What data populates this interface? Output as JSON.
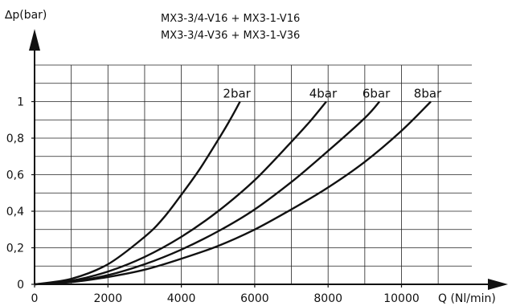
{
  "chart_data": {
    "type": "line",
    "title_lines": [
      "MX3-3/4-V16 + MX3-1-V16",
      "MX3-3/4-V36 + MX3-1-V36"
    ],
    "ylabel": "∆p(bar)",
    "xlabel": "Q (Nl/min)",
    "xlim": [
      0,
      12000
    ],
    "ylim": [
      0,
      1.1
    ],
    "grid": true,
    "x_ticks": [
      0,
      2000,
      4000,
      6000,
      8000,
      10000
    ],
    "x_tick_labels": [
      "0",
      "2000",
      "4000",
      "6000",
      "8000",
      "10000"
    ],
    "y_ticks": [
      0,
      0.2,
      0.4,
      0.6,
      0.8,
      1
    ],
    "y_tick_labels": [
      "0",
      "0,2",
      "0,4",
      "0,6",
      "0,8",
      "1"
    ],
    "series": [
      {
        "name": "2bar",
        "x": [
          0,
          1000,
          2000,
          3000,
          3500,
          4000,
          4500,
          5000,
          5300,
          5600
        ],
        "y": [
          0,
          0.03,
          0.11,
          0.26,
          0.36,
          0.49,
          0.63,
          0.79,
          0.89,
          1.0
        ]
      },
      {
        "name": "4bar",
        "x": [
          0,
          1000,
          2000,
          3000,
          4000,
          5000,
          6000,
          7000,
          7500,
          7950
        ],
        "y": [
          0,
          0.02,
          0.07,
          0.15,
          0.26,
          0.4,
          0.57,
          0.78,
          0.89,
          1.0
        ]
      },
      {
        "name": "6bar",
        "x": [
          0,
          1000,
          2000,
          3000,
          4000,
          5000,
          6000,
          7000,
          8000,
          9000,
          9400
        ],
        "y": [
          0,
          0.015,
          0.05,
          0.11,
          0.19,
          0.29,
          0.41,
          0.56,
          0.73,
          0.91,
          1.0
        ]
      },
      {
        "name": "8bar",
        "x": [
          0,
          1000,
          2000,
          3000,
          4000,
          5000,
          6000,
          7000,
          8000,
          9000,
          10000,
          10800
        ],
        "y": [
          0,
          0.012,
          0.04,
          0.08,
          0.14,
          0.21,
          0.3,
          0.41,
          0.53,
          0.67,
          0.84,
          1.0
        ]
      }
    ]
  }
}
